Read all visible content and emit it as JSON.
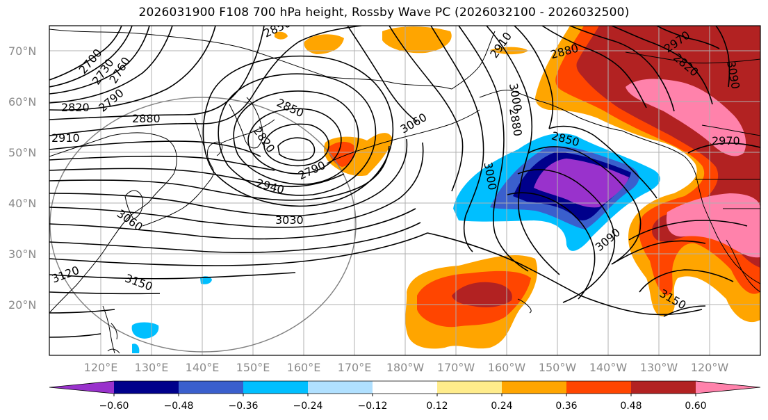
{
  "title": "2026031900 F108 700 hPa height, Rossby Wave PC (2026032100 - 2026032500)",
  "map": {
    "lat_ticks": [
      "70°N",
      "60°N",
      "50°N",
      "40°N",
      "30°N",
      "20°N"
    ],
    "lon_ticks": [
      "120°E",
      "130°E",
      "140°E",
      "150°E",
      "160°E",
      "170°E",
      "180°W",
      "170°W",
      "160°W",
      "150°W",
      "140°W",
      "130°W",
      "120°W"
    ],
    "contour_labels": [
      "2700",
      "2730",
      "2760",
      "2790",
      "2820",
      "2850",
      "2880",
      "2910",
      "2940",
      "2970",
      "3000",
      "3030",
      "3060",
      "3090",
      "3120",
      "3150",
      "2790",
      "2820",
      "2850",
      "2910",
      "2880",
      "2820",
      "2850",
      "2970",
      "3000",
      "3090",
      "3150",
      "2880",
      "3060"
    ]
  },
  "colorbar": {
    "ticks": [
      "−0.60",
      "−0.48",
      "−0.36",
      "−0.24",
      "−0.12",
      "0.12",
      "0.24",
      "0.36",
      "0.48",
      "0.60"
    ],
    "colors": [
      "#9932cc",
      "#00008b",
      "#3a5fcd",
      "#00bfff",
      "#b0e0ff",
      "#ffffff",
      "#ffec8b",
      "#ffa500",
      "#ff4500",
      "#b22222",
      "#ff82ab"
    ]
  }
}
